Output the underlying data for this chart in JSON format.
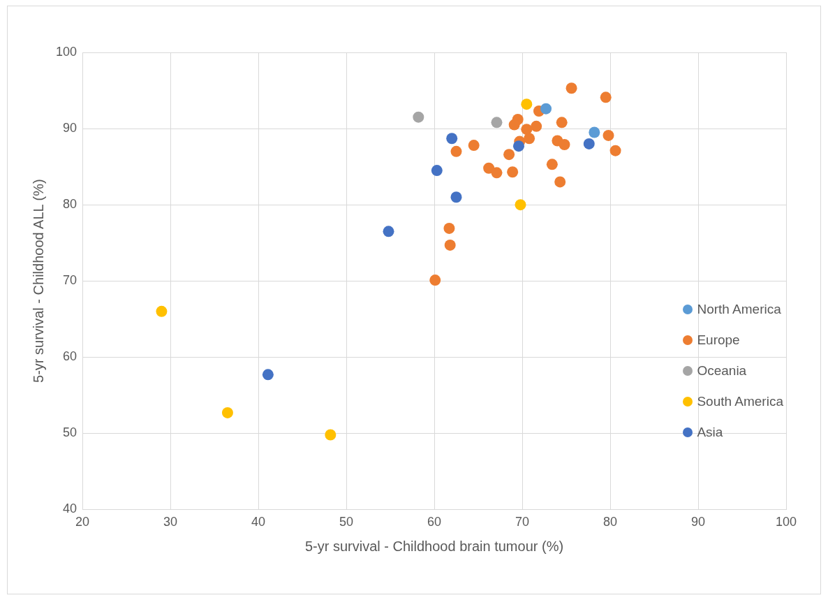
{
  "chart_data": {
    "type": "scatter",
    "xlabel": "5-yr survival - Childhood brain tumour (%)",
    "ylabel": "5-yr survival - Childhood ALL (%)",
    "xlim": [
      20,
      100
    ],
    "xticks": [
      20,
      30,
      40,
      50,
      60,
      70,
      80,
      90,
      100
    ],
    "ylim": [
      40,
      100
    ],
    "yticks": [
      40,
      50,
      60,
      70,
      80,
      90,
      100
    ],
    "grid": true,
    "legend": "right",
    "marker": "circle",
    "series": [
      {
        "name": "North America",
        "color": "#5b9bd5",
        "x": [
          72.7,
          78.2
        ],
        "values": [
          92.6,
          89.5
        ]
      },
      {
        "name": "Europe",
        "color": "#ed7d31",
        "x": [
          75.6,
          79.5,
          71.9,
          69.5,
          69.1,
          70.5,
          71.6,
          74.5,
          79.8,
          80.6,
          70.8,
          69.7,
          74.0,
          74.8,
          64.5,
          62.5,
          68.5,
          66.2,
          67.1,
          68.9,
          73.4,
          74.3,
          61.7,
          61.8,
          60.1
        ],
        "values": [
          95.3,
          94.1,
          92.3,
          91.2,
          90.5,
          89.9,
          90.3,
          90.8,
          89.1,
          87.1,
          88.7,
          88.3,
          88.4,
          87.9,
          87.8,
          87.0,
          86.6,
          84.8,
          84.2,
          84.3,
          85.3,
          83.0,
          76.9,
          74.7,
          70.1
        ]
      },
      {
        "name": "Oceania",
        "color": "#a5a5a5",
        "x": [
          58.2,
          67.1
        ],
        "values": [
          91.5,
          90.8
        ]
      },
      {
        "name": "South America",
        "color": "#ffc000",
        "x": [
          70.5,
          69.8,
          29.0,
          36.5,
          48.2
        ],
        "values": [
          93.2,
          80.0,
          66.0,
          52.7,
          49.8
        ]
      },
      {
        "name": "Asia",
        "color": "#4472c4",
        "x": [
          62.0,
          60.3,
          62.5,
          69.6,
          77.6,
          54.8,
          41.1
        ],
        "values": [
          88.7,
          84.5,
          81.0,
          87.7,
          88.0,
          76.5,
          57.7
        ]
      }
    ]
  }
}
